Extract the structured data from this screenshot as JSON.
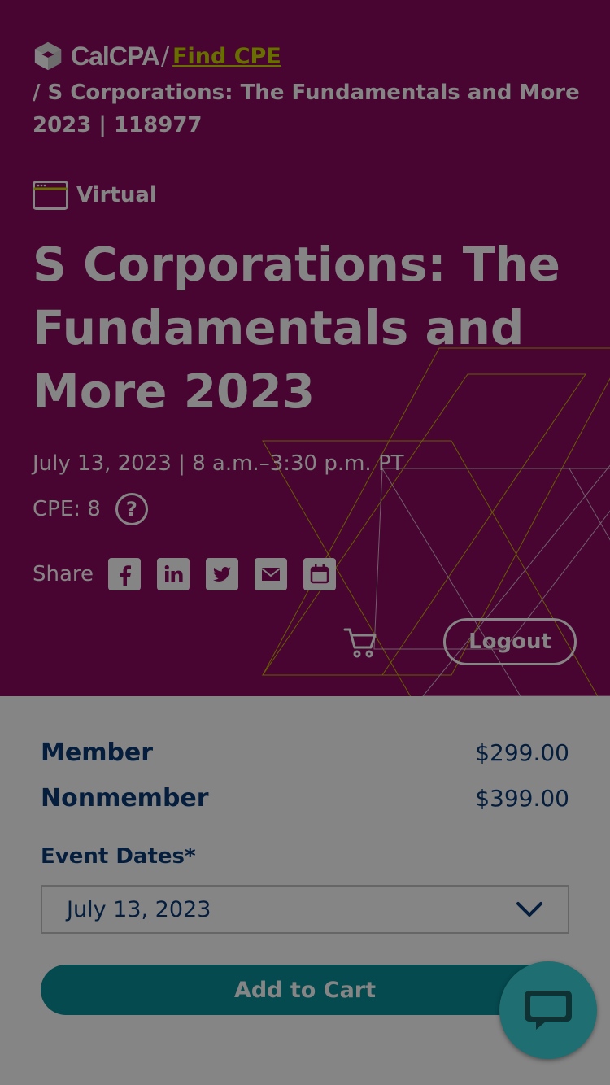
{
  "breadcrumb": {
    "logo_text": "CalCPA",
    "separator": "/",
    "link": "Find CPE",
    "current": "/ S Corporations: The Fundamentals and More 2023 | 118977"
  },
  "course": {
    "format": "Virtual",
    "title": "S Corporations: The Fundamentals and More 2023",
    "date_time": "July 13, 2023 | 8 a.m.–3:30 p.m. PT",
    "cpe": "CPE: 8",
    "cpe_help": "?"
  },
  "share": {
    "label": "Share",
    "icons": [
      "facebook-icon",
      "linkedin-icon",
      "twitter-icon",
      "email-icon",
      "calendar-icon"
    ]
  },
  "header": {
    "logout_label": "Logout"
  },
  "pricing": {
    "member_label": "Member",
    "member_price": "$299.00",
    "nonmember_label": "Nonmember",
    "nonmember_price": "$399.00",
    "event_dates_label": "Event Dates*",
    "event_date_selected": "July 13, 2023",
    "add_to_cart_label": "Add to Cart"
  },
  "colors": {
    "hero_bg": "#8a0a5e",
    "link": "#c8d400",
    "text_blue": "#0a3a75",
    "button_teal": "#0a8e98",
    "chat_teal": "#1f6e72"
  }
}
